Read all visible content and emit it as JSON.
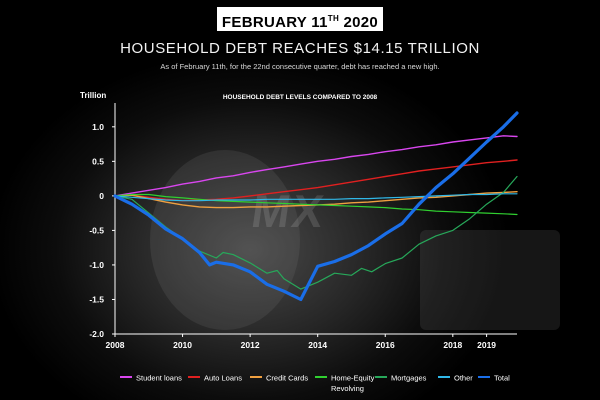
{
  "header": {
    "date_main": "FEBRUARY 11",
    "date_sup": "TH",
    "date_year": " 2020",
    "title": "HOUSEHOLD DEBT REACHES $14.15 TRILLION",
    "subtitle": "As of February 11th, for the 22nd consecutive quarter, debt has reached a new high."
  },
  "watermark": "MX",
  "chart_data": {
    "type": "line",
    "title": "HOUSEHOLD DEBT LEVELS COMPARED TO 2008",
    "ylabel": "Trillion",
    "ylim": [
      -2.0,
      1.2
    ],
    "xlim": [
      2008,
      2019.9
    ],
    "x_ticks": [
      {
        "value": 2008,
        "label": "2008"
      },
      {
        "value": 2010,
        "label": "2010"
      },
      {
        "value": 2012,
        "label": "2012"
      },
      {
        "value": 2014,
        "label": "2014"
      },
      {
        "value": 2016,
        "label": "2016"
      },
      {
        "value": 2018,
        "label": "2018"
      },
      {
        "value": 2019,
        "label": "2019"
      }
    ],
    "y_ticks": [
      {
        "value": 1.0,
        "label": "1.0"
      },
      {
        "value": 0.5,
        "label": "0.5"
      },
      {
        "value": 0,
        "label": "0"
      },
      {
        "value": -0.5,
        "label": "-0.5"
      },
      {
        "value": -1.0,
        "label": "-1.0"
      },
      {
        "value": -1.5,
        "label": "-1.5"
      },
      {
        "value": -2.0,
        "label": "-2.0"
      }
    ],
    "grid": false,
    "legend_position": "bottom",
    "series": [
      {
        "name": "Student loans",
        "key": "student",
        "color": "#d946ef",
        "width": 1.4,
        "points": [
          [
            2008,
            0
          ],
          [
            2008.5,
            0.04
          ],
          [
            2009,
            0.08
          ],
          [
            2009.5,
            0.12
          ],
          [
            2010,
            0.17
          ],
          [
            2010.5,
            0.21
          ],
          [
            2011,
            0.26
          ],
          [
            2011.5,
            0.29
          ],
          [
            2012,
            0.34
          ],
          [
            2012.5,
            0.38
          ],
          [
            2013,
            0.42
          ],
          [
            2013.5,
            0.46
          ],
          [
            2014,
            0.5
          ],
          [
            2014.5,
            0.53
          ],
          [
            2015,
            0.57
          ],
          [
            2015.5,
            0.6
          ],
          [
            2016,
            0.64
          ],
          [
            2016.5,
            0.67
          ],
          [
            2017,
            0.71
          ],
          [
            2017.5,
            0.74
          ],
          [
            2018,
            0.78
          ],
          [
            2018.5,
            0.81
          ],
          [
            2019,
            0.84
          ],
          [
            2019.5,
            0.87
          ],
          [
            2019.9,
            0.86
          ]
        ]
      },
      {
        "name": "Auto Loans",
        "key": "auto",
        "color": "#e02020",
        "width": 1.4,
        "points": [
          [
            2008,
            0
          ],
          [
            2008.5,
            0.01
          ],
          [
            2009,
            -0.02
          ],
          [
            2009.5,
            -0.05
          ],
          [
            2010,
            -0.07
          ],
          [
            2010.5,
            -0.06
          ],
          [
            2011,
            -0.05
          ],
          [
            2011.5,
            -0.03
          ],
          [
            2012,
            0
          ],
          [
            2012.5,
            0.03
          ],
          [
            2013,
            0.06
          ],
          [
            2013.5,
            0.09
          ],
          [
            2014,
            0.12
          ],
          [
            2014.5,
            0.16
          ],
          [
            2015,
            0.2
          ],
          [
            2015.5,
            0.24
          ],
          [
            2016,
            0.28
          ],
          [
            2016.5,
            0.32
          ],
          [
            2017,
            0.36
          ],
          [
            2017.5,
            0.39
          ],
          [
            2018,
            0.42
          ],
          [
            2018.5,
            0.45
          ],
          [
            2019,
            0.48
          ],
          [
            2019.5,
            0.5
          ],
          [
            2019.9,
            0.52
          ]
        ]
      },
      {
        "name": "Credit Cards",
        "key": "credit",
        "color": "#f0a040",
        "width": 1.4,
        "points": [
          [
            2008,
            0
          ],
          [
            2008.5,
            0.01
          ],
          [
            2009,
            -0.04
          ],
          [
            2009.5,
            -0.09
          ],
          [
            2010,
            -0.13
          ],
          [
            2010.5,
            -0.16
          ],
          [
            2011,
            -0.17
          ],
          [
            2011.5,
            -0.17
          ],
          [
            2012,
            -0.16
          ],
          [
            2012.5,
            -0.16
          ],
          [
            2013,
            -0.15
          ],
          [
            2013.5,
            -0.14
          ],
          [
            2014,
            -0.13
          ],
          [
            2014.5,
            -0.12
          ],
          [
            2015,
            -0.1
          ],
          [
            2015.5,
            -0.09
          ],
          [
            2016,
            -0.07
          ],
          [
            2016.5,
            -0.05
          ],
          [
            2017,
            -0.03
          ],
          [
            2017.5,
            -0.02
          ],
          [
            2018,
            0
          ],
          [
            2018.5,
            0.02
          ],
          [
            2019,
            0.04
          ],
          [
            2019.5,
            0.05
          ],
          [
            2019.9,
            0.06
          ]
        ]
      },
      {
        "name": "Home-Equity Revolving",
        "label_line1": "Home-Equity",
        "label_line2": "Revolving",
        "key": "heloc",
        "color": "#30d030",
        "width": 1.2,
        "points": [
          [
            2008,
            0
          ],
          [
            2008.5,
            0.02
          ],
          [
            2009,
            0.02
          ],
          [
            2009.5,
            -0.01
          ],
          [
            2010,
            -0.03
          ],
          [
            2010.5,
            -0.05
          ],
          [
            2011,
            -0.07
          ],
          [
            2011.5,
            -0.08
          ],
          [
            2012,
            -0.09
          ],
          [
            2012.5,
            -0.1
          ],
          [
            2013,
            -0.11
          ],
          [
            2013.5,
            -0.12
          ],
          [
            2014,
            -0.13
          ],
          [
            2014.5,
            -0.14
          ],
          [
            2015,
            -0.15
          ],
          [
            2015.5,
            -0.16
          ],
          [
            2016,
            -0.17
          ],
          [
            2016.5,
            -0.19
          ],
          [
            2017,
            -0.2
          ],
          [
            2017.5,
            -0.22
          ],
          [
            2018,
            -0.23
          ],
          [
            2018.5,
            -0.24
          ],
          [
            2019,
            -0.25
          ],
          [
            2019.5,
            -0.26
          ],
          [
            2019.9,
            -0.27
          ]
        ]
      },
      {
        "name": "Mortgages",
        "key": "mortgage",
        "color": "#27a85a",
        "width": 1.2,
        "points": [
          [
            2008,
            0
          ],
          [
            2008.5,
            -0.05
          ],
          [
            2009,
            -0.25
          ],
          [
            2009.5,
            -0.45
          ],
          [
            2010,
            -0.62
          ],
          [
            2010.5,
            -0.8
          ],
          [
            2011,
            -0.9
          ],
          [
            2011.2,
            -0.82
          ],
          [
            2011.5,
            -0.85
          ],
          [
            2012,
            -0.97
          ],
          [
            2012.5,
            -1.12
          ],
          [
            2012.8,
            -1.08
          ],
          [
            2013,
            -1.2
          ],
          [
            2013.5,
            -1.35
          ],
          [
            2014,
            -1.25
          ],
          [
            2014.5,
            -1.12
          ],
          [
            2015,
            -1.15
          ],
          [
            2015.3,
            -1.05
          ],
          [
            2015.6,
            -1.1
          ],
          [
            2016,
            -0.98
          ],
          [
            2016.5,
            -0.9
          ],
          [
            2017,
            -0.7
          ],
          [
            2017.5,
            -0.58
          ],
          [
            2018,
            -0.5
          ],
          [
            2018.5,
            -0.33
          ],
          [
            2019,
            -0.12
          ],
          [
            2019.5,
            0.05
          ],
          [
            2019.9,
            0.28
          ]
        ]
      },
      {
        "name": "Other",
        "key": "other",
        "color": "#30b8e8",
        "width": 1.2,
        "points": [
          [
            2008,
            0
          ],
          [
            2008.5,
            -0.02
          ],
          [
            2009,
            -0.04
          ],
          [
            2009.5,
            -0.06
          ],
          [
            2010,
            -0.07
          ],
          [
            2010.5,
            -0.07
          ],
          [
            2011,
            -0.06
          ],
          [
            2011.5,
            -0.06
          ],
          [
            2012,
            -0.06
          ],
          [
            2012.5,
            -0.05
          ],
          [
            2013,
            -0.05
          ],
          [
            2013.5,
            -0.05
          ],
          [
            2014,
            -0.05
          ],
          [
            2014.5,
            -0.05
          ],
          [
            2015,
            -0.04
          ],
          [
            2015.5,
            -0.04
          ],
          [
            2016,
            -0.03
          ],
          [
            2016.5,
            -0.02
          ],
          [
            2017,
            -0.01
          ],
          [
            2017.5,
            0
          ],
          [
            2018,
            0.01
          ],
          [
            2018.5,
            0.02
          ],
          [
            2019,
            0.02
          ],
          [
            2019.5,
            0.03
          ],
          [
            2019.9,
            0.03
          ]
        ]
      },
      {
        "name": "Total",
        "key": "total",
        "color": "#1a6ee8",
        "width": 3.2,
        "points": [
          [
            2008,
            0
          ],
          [
            2008.5,
            -0.12
          ],
          [
            2009,
            -0.28
          ],
          [
            2009.5,
            -0.48
          ],
          [
            2010,
            -0.62
          ],
          [
            2010.5,
            -0.82
          ],
          [
            2010.8,
            -1.0
          ],
          [
            2011,
            -0.96
          ],
          [
            2011.5,
            -1.0
          ],
          [
            2012,
            -1.1
          ],
          [
            2012.5,
            -1.28
          ],
          [
            2013,
            -1.38
          ],
          [
            2013.5,
            -1.5
          ],
          [
            2014,
            -1.02
          ],
          [
            2014.5,
            -0.95
          ],
          [
            2015,
            -0.85
          ],
          [
            2015.5,
            -0.72
          ],
          [
            2016,
            -0.55
          ],
          [
            2016.5,
            -0.4
          ],
          [
            2017,
            -0.12
          ],
          [
            2017.5,
            0.12
          ],
          [
            2018,
            0.32
          ],
          [
            2018.5,
            0.55
          ],
          [
            2019,
            0.78
          ],
          [
            2019.5,
            1.0
          ],
          [
            2019.9,
            1.2
          ]
        ]
      }
    ]
  },
  "legend": {
    "items": [
      {
        "label": "Student loans",
        "color": "#d946ef"
      },
      {
        "label": "Auto Loans",
        "color": "#e02020"
      },
      {
        "label": "Credit Cards",
        "color": "#f0a040"
      },
      {
        "label": "Home-Equity",
        "label2": "Revolving",
        "color": "#30d030"
      },
      {
        "label": "Mortgages",
        "color": "#27a85a"
      },
      {
        "label": "Other",
        "color": "#30b8e8"
      },
      {
        "label": "Total",
        "color": "#1a6ee8"
      }
    ]
  }
}
